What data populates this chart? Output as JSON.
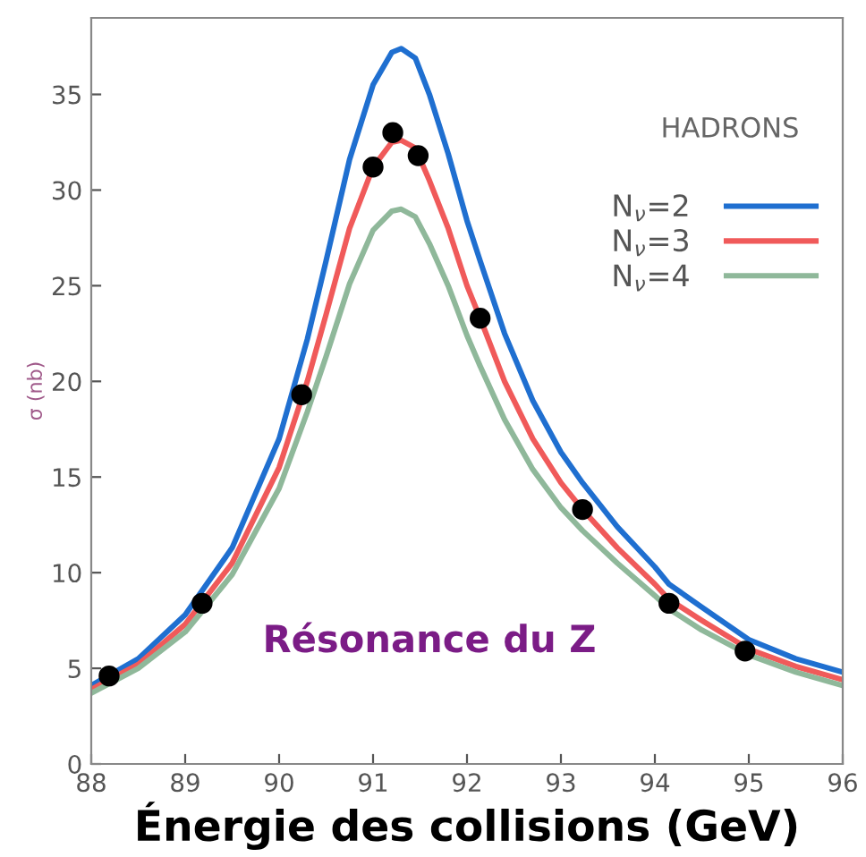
{
  "chart_data": {
    "type": "line",
    "xlabel": "Énergie des collisions (GeV)",
    "ylabel": "σ (nb)",
    "xlim": [
      88,
      96
    ],
    "xticks": [
      88,
      89,
      90,
      91,
      92,
      93,
      94,
      95,
      96
    ],
    "ylim": [
      0,
      39
    ],
    "yticks": [
      0,
      5,
      10,
      15,
      20,
      25,
      30,
      35
    ],
    "grid": false,
    "legend": "top right",
    "marker": "none",
    "line_style": "solid",
    "annotations": [
      "HADRONS",
      "Résonance du Z"
    ],
    "series": [
      {
        "name": "N$_{ν}$=2",
        "color": "#1f6fd0",
        "x": [
          88.0,
          88.5,
          89.0,
          89.5,
          90.0,
          90.3,
          90.5,
          90.75,
          91.0,
          91.2,
          91.3,
          91.45,
          91.6,
          91.8,
          92.0,
          92.14,
          92.4,
          92.7,
          93.0,
          93.23,
          93.6,
          94.0,
          94.15,
          94.5,
          95.0,
          95.5,
          96.0
        ],
        "values": [
          4.1,
          5.5,
          7.8,
          11.3,
          17.0,
          22.2,
          26.3,
          31.6,
          35.5,
          37.2,
          37.4,
          36.9,
          35.0,
          31.9,
          28.4,
          26.3,
          22.5,
          19.0,
          16.3,
          14.7,
          12.4,
          10.3,
          9.4,
          8.2,
          6.5,
          5.5,
          4.8
        ]
      },
      {
        "name": "N$_{ν}$=3",
        "color": "#f05a5a",
        "x": [
          88.0,
          88.5,
          89.0,
          89.5,
          90.0,
          90.3,
          90.5,
          90.75,
          91.0,
          91.2,
          91.3,
          91.45,
          91.6,
          91.8,
          92.0,
          92.14,
          92.4,
          92.7,
          93.0,
          93.23,
          93.6,
          94.0,
          94.15,
          94.5,
          95.0,
          95.5,
          96.0
        ],
        "values": [
          3.9,
          5.2,
          7.3,
          10.5,
          15.5,
          20.0,
          23.5,
          28.0,
          31.2,
          32.5,
          32.6,
          32.2,
          30.5,
          28.0,
          25.0,
          23.3,
          20.0,
          17.0,
          14.7,
          13.3,
          11.3,
          9.4,
          8.6,
          7.5,
          6.0,
          5.1,
          4.4
        ]
      },
      {
        "name": "N$_{ν}$=4",
        "color": "#8fb89a",
        "x": [
          88.0,
          88.5,
          89.0,
          89.5,
          90.0,
          90.3,
          90.5,
          90.75,
          91.0,
          91.2,
          91.3,
          91.45,
          91.6,
          91.8,
          92.0,
          92.14,
          92.4,
          92.7,
          93.0,
          93.23,
          93.6,
          94.0,
          94.15,
          94.5,
          95.0,
          95.5,
          96.0
        ],
        "values": [
          3.7,
          5.0,
          6.9,
          9.9,
          14.4,
          18.4,
          21.3,
          25.1,
          27.9,
          28.9,
          29.0,
          28.6,
          27.2,
          25.0,
          22.4,
          20.8,
          18.0,
          15.4,
          13.4,
          12.2,
          10.5,
          8.8,
          8.1,
          7.0,
          5.7,
          4.8,
          4.1
        ]
      },
      {
        "type": "scatter",
        "marker": "circle",
        "color": "#000000",
        "x": [
          88.19,
          89.18,
          90.24,
          91.0,
          91.21,
          91.48,
          92.14,
          93.23,
          94.15,
          94.96
        ],
        "values": [
          4.6,
          8.4,
          19.3,
          31.2,
          33.0,
          31.8,
          23.3,
          13.3,
          8.4,
          5.9
        ]
      }
    ]
  }
}
